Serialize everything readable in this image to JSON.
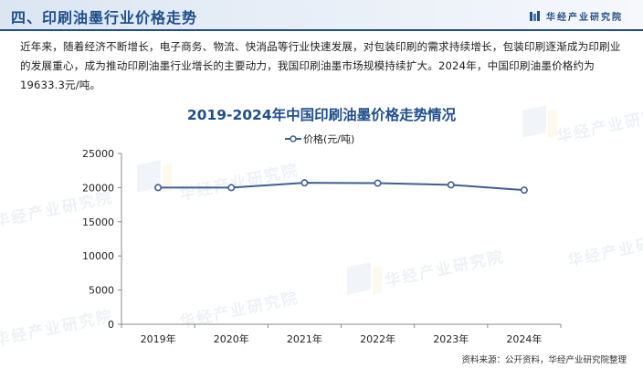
{
  "header": {
    "title": "四、印刷油墨行业价格走势",
    "brand": "华经产业研究院"
  },
  "intro": {
    "text": "近年来，随着经济不断增长，电子商务、物流、快消品等行业快速发展，对包装印刷的需求持续增长，包装印刷逐渐成为印刷业的发展重心，成为推动印刷油墨行业增长的主要动力，我国印刷油墨市场规模持续扩大。2024年，中国印刷油墨价格约为19633.3元/吨。"
  },
  "watermark": "华经产业研究院",
  "source": "资料来源：公开资料，华经产业研究院整理",
  "chart_data": {
    "type": "line",
    "title": "2019-2024年中国印刷油墨价格走势情况",
    "categories": [
      "2019年",
      "2020年",
      "2021年",
      "2022年",
      "2023年",
      "2024年"
    ],
    "series": [
      {
        "name": "价格(元/吨)",
        "values": [
          20000,
          20000,
          20700,
          20650,
          20400,
          19633.3
        ]
      }
    ],
    "ylim": [
      0,
      25000
    ],
    "yticks": [
      0,
      5000,
      10000,
      15000,
      20000,
      25000
    ],
    "grid": false,
    "legend": "top-center",
    "colors": {
      "line": "#3e5f93",
      "marker_fill": "#ffffff",
      "axis": "#888888"
    }
  }
}
